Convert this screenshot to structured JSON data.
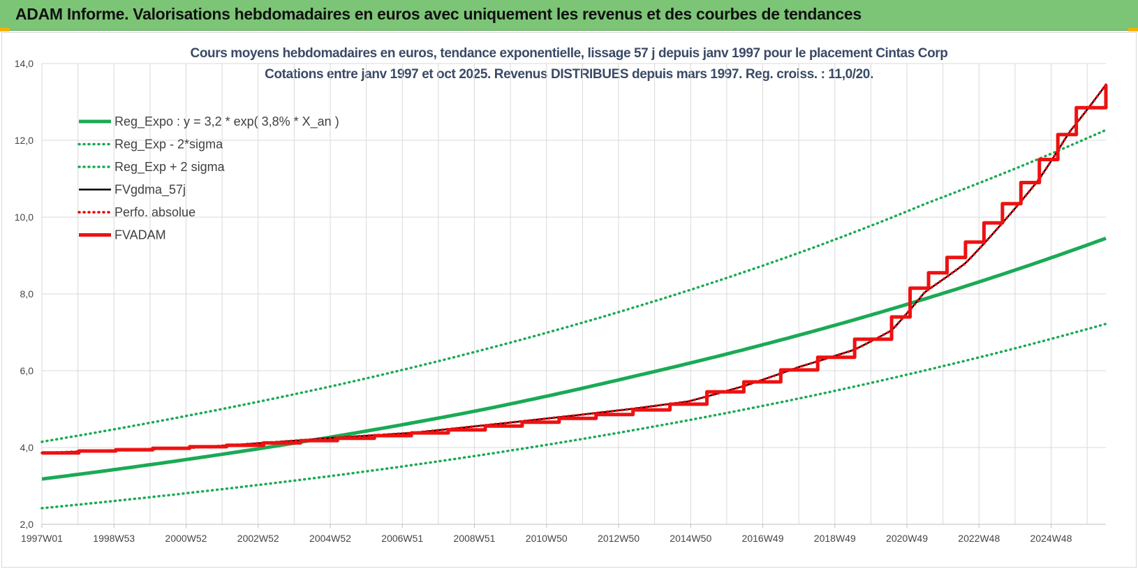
{
  "header": {
    "title": "ADAM Informe. Valorisations hebdomadaires en euros avec uniquement les revenus et des courbes de tendances"
  },
  "colors": {
    "banner": "#7cc576",
    "trend": "#1aaa55",
    "band": "#1aaa55",
    "smoothed": "#000000",
    "absolute": "#e00000",
    "adam": "#ee1111",
    "grid": "#d9d9d9"
  },
  "chart_data": {
    "type": "line",
    "title": "Cours moyens hebdomadaires en euros, tendance exponentielle, lissage 57 j depuis janv 1997 pour le placement Cintas Corp",
    "subtitle": "Cotations entre janv 1997 et oct 2025. Revenus DISTRIBUES depuis mars 1997. Reg. croiss. : 11,0/20.",
    "xlabel": "",
    "ylabel": "",
    "ylim": [
      2,
      14
    ],
    "y_ticks": [
      "2,0",
      "4,0",
      "6,0",
      "8,0",
      "10,0",
      "12,0",
      "14,0"
    ],
    "x_ticks": [
      "1997W01",
      "1998W53",
      "2000W52",
      "2002W52",
      "2004W52",
      "2006W51",
      "2008W51",
      "2010W50",
      "2012W50",
      "2014W50",
      "2016W49",
      "2018W49",
      "2020W49",
      "2022W48",
      "2024W48"
    ],
    "xlim": [
      1997.0,
      2025.8
    ],
    "grid": true,
    "legend_position": "top-left",
    "series": [
      {
        "name": "Reg_Expo : y = 3,2 * exp( 3,8% *  X_an )",
        "style": "solid-thick",
        "color": "#1aaa55",
        "x": [
          1997.0,
          2001.0,
          2005.0,
          2009.0,
          2013.0,
          2017.0,
          2021.0,
          2025.8
        ],
        "values": [
          3.18,
          3.7,
          4.3,
          5.0,
          5.85,
          6.8,
          7.9,
          9.45
        ]
      },
      {
        "name": "Reg_Exp - 2*sigma",
        "style": "dotted",
        "color": "#1aaa55",
        "x": [
          1997.0,
          2001.0,
          2005.0,
          2009.0,
          2013.0,
          2017.0,
          2021.0,
          2025.8
        ],
        "values": [
          2.42,
          2.82,
          3.28,
          3.82,
          4.45,
          5.18,
          6.03,
          7.22
        ]
      },
      {
        "name": "Reg_Exp + 2 sigma",
        "style": "dotted",
        "color": "#1aaa55",
        "x": [
          1997.0,
          2001.0,
          2005.0,
          2009.0,
          2013.0,
          2017.0,
          2021.0,
          2025.8
        ],
        "values": [
          4.15,
          4.84,
          5.63,
          6.56,
          7.64,
          8.9,
          10.38,
          12.27
        ]
      },
      {
        "name": "FVgdma_57j",
        "style": "solid",
        "color": "#000000",
        "x": [
          1997.0,
          1999.0,
          2001.0,
          2003.0,
          2005.0,
          2007.0,
          2009.0,
          2011.0,
          2013.0,
          2014.5,
          2016.0,
          2017.5,
          2019.0,
          2020.0,
          2020.9,
          2022.0,
          2023.0,
          2024.0,
          2024.8,
          2025.8
        ],
        "values": [
          3.86,
          3.93,
          3.99,
          4.12,
          4.26,
          4.38,
          4.58,
          4.79,
          5.01,
          5.2,
          5.6,
          6.1,
          6.55,
          7.05,
          8.05,
          8.8,
          9.85,
          11.0,
          12.2,
          13.45
        ]
      },
      {
        "name": "Perfo. absolue",
        "style": "dotted",
        "color": "#e00000",
        "x": [
          1997.0,
          1999.0,
          2001.0,
          2003.0,
          2005.0,
          2007.0,
          2009.0,
          2011.0,
          2013.0,
          2014.5,
          2016.0,
          2017.5,
          2019.0,
          2020.0,
          2020.9,
          2022.0,
          2023.0,
          2024.0,
          2024.8,
          2025.8
        ],
        "values": [
          3.86,
          3.93,
          3.99,
          4.12,
          4.26,
          4.38,
          4.58,
          4.79,
          5.01,
          5.2,
          5.6,
          6.1,
          6.55,
          7.05,
          8.05,
          8.8,
          9.85,
          11.0,
          12.2,
          13.45
        ]
      },
      {
        "name": "FVADAM",
        "style": "step-thick",
        "color": "#ee1111",
        "x": [
          1997.0,
          1998.0,
          1999.0,
          2000.0,
          2001.0,
          2002.0,
          2003.0,
          2004.0,
          2005.0,
          2006.0,
          2007.0,
          2008.0,
          2009.0,
          2010.0,
          2011.0,
          2012.0,
          2013.0,
          2014.0,
          2015.0,
          2016.0,
          2017.0,
          2018.0,
          2019.0,
          2020.0,
          2020.5,
          2021.0,
          2021.5,
          2022.0,
          2022.5,
          2023.0,
          2023.5,
          2024.0,
          2024.5,
          2025.0,
          2025.8
        ],
        "values": [
          3.86,
          3.91,
          3.94,
          3.98,
          4.02,
          4.06,
          4.12,
          4.18,
          4.24,
          4.31,
          4.38,
          4.46,
          4.56,
          4.66,
          4.76,
          4.86,
          4.98,
          5.13,
          5.45,
          5.71,
          6.02,
          6.35,
          6.82,
          7.4,
          8.15,
          8.55,
          8.95,
          9.35,
          9.85,
          10.35,
          10.9,
          11.5,
          12.15,
          12.85,
          13.45
        ]
      }
    ]
  }
}
